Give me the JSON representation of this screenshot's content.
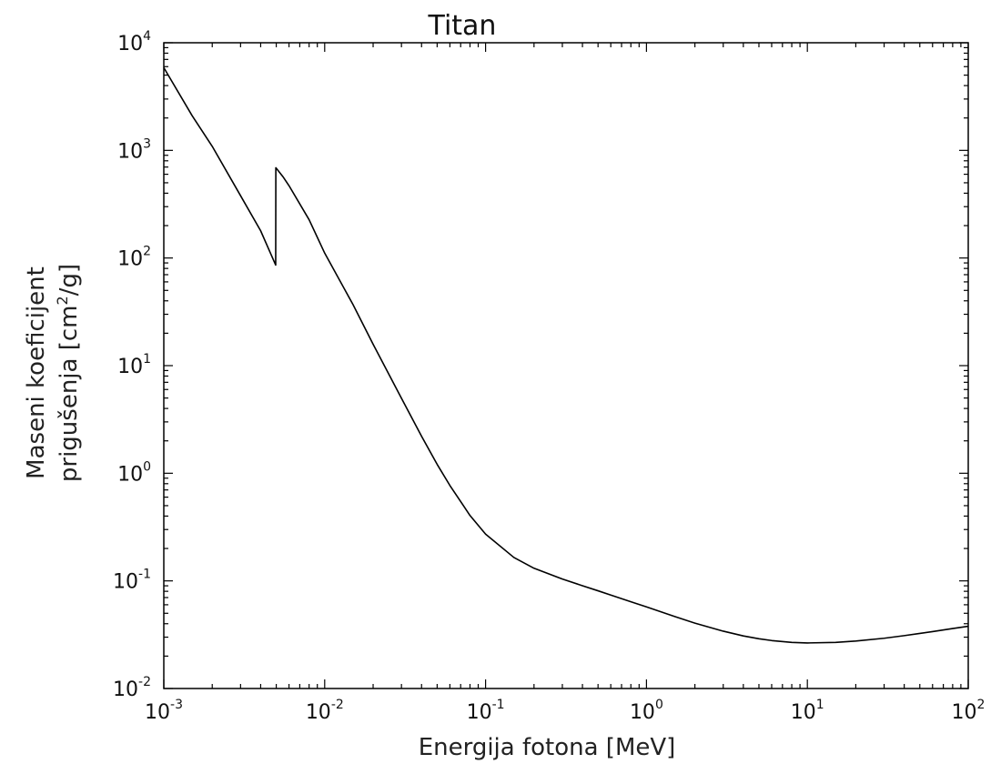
{
  "chart_data": {
    "type": "line",
    "title": "Titan",
    "xlabel": "Energija fotona [MeV]",
    "ylabel_line1": "Maseni koeficijent",
    "ylabel_line2": "prigušenja [cm",
    "ylabel_sup": "2",
    "ylabel_end": "/g]",
    "x_scale": "log",
    "y_scale": "log",
    "xlim": [
      0.001,
      100
    ],
    "ylim": [
      0.01,
      10000
    ],
    "x_ticks": [
      {
        "base": "10",
        "exp": "-3",
        "value": 0.001
      },
      {
        "base": "10",
        "exp": "-2",
        "value": 0.01
      },
      {
        "base": "10",
        "exp": "-1",
        "value": 0.1
      },
      {
        "base": "10",
        "exp": "0",
        "value": 1
      },
      {
        "base": "10",
        "exp": "1",
        "value": 10
      },
      {
        "base": "10",
        "exp": "2",
        "value": 100
      }
    ],
    "y_ticks": [
      {
        "base": "10",
        "exp": "-2",
        "value": 0.01
      },
      {
        "base": "10",
        "exp": "-1",
        "value": 0.1
      },
      {
        "base": "10",
        "exp": "0",
        "value": 1
      },
      {
        "base": "10",
        "exp": "1",
        "value": 10
      },
      {
        "base": "10",
        "exp": "2",
        "value": 100
      },
      {
        "base": "10",
        "exp": "3",
        "value": 1000
      },
      {
        "base": "10",
        "exp": "4",
        "value": 10000
      }
    ],
    "grid": false,
    "legend": "none",
    "line_color": "#000000",
    "series": [
      {
        "x": [
          0.001,
          0.0015,
          0.002,
          0.003,
          0.004,
          0.00496,
          0.00497,
          0.0055,
          0.006,
          0.008,
          0.01,
          0.015,
          0.02,
          0.03,
          0.04,
          0.05,
          0.06,
          0.08,
          0.1,
          0.15,
          0.2,
          0.3,
          0.4,
          0.5,
          0.6,
          0.8,
          1,
          1.5,
          2,
          3,
          4,
          5,
          6,
          8,
          10,
          15,
          20,
          30,
          40,
          50,
          60,
          80,
          100
        ],
        "y": [
          5870,
          2100,
          1090,
          379,
          179,
          86,
          690,
          570,
          470,
          227,
          111,
          36.9,
          15.8,
          4.97,
          2.21,
          1.21,
          0.77,
          0.405,
          0.272,
          0.165,
          0.131,
          0.104,
          0.0902,
          0.0809,
          0.0738,
          0.064,
          0.0573,
          0.0466,
          0.0405,
          0.0341,
          0.0308,
          0.029,
          0.0279,
          0.0268,
          0.0265,
          0.0268,
          0.0276,
          0.0293,
          0.031,
          0.0325,
          0.0338,
          0.0361,
          0.0379
        ]
      }
    ]
  }
}
